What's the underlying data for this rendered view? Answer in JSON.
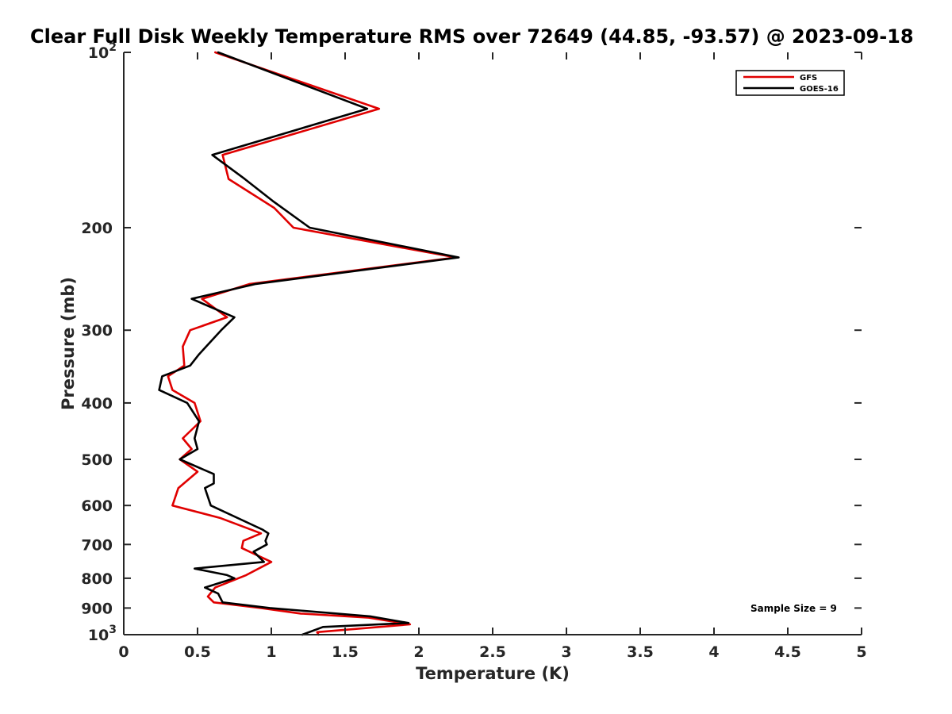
{
  "chart_data": {
    "type": "line",
    "title": "Clear Full Disk Weekly Temperature RMS over 72649 (44.85, -93.57) @ 2023-09-18",
    "xlabel": "Temperature (K)",
    "ylabel": "Pressure (mb)",
    "xlim": [
      0,
      5
    ],
    "ylim": [
      100,
      1000
    ],
    "y_scale": "log",
    "y_reversed": true,
    "x_ticks": [
      0,
      0.5,
      1,
      1.5,
      2,
      2.5,
      3,
      3.5,
      4,
      4.5,
      5
    ],
    "x_tick_labels": [
      "0",
      "0.5",
      "1",
      "1.5",
      "2",
      "2.5",
      "3",
      "3.5",
      "4",
      "4.5",
      "5"
    ],
    "y_ticks": [
      {
        "value": 100,
        "base": "10",
        "exp": "2"
      },
      {
        "value": 200,
        "label": "200"
      },
      {
        "value": 300,
        "label": "300"
      },
      {
        "value": 400,
        "label": "400"
      },
      {
        "value": 500,
        "label": "500"
      },
      {
        "value": 600,
        "label": "600"
      },
      {
        "value": 700,
        "label": "700"
      },
      {
        "value": 800,
        "label": "800"
      },
      {
        "value": 900,
        "label": "900"
      },
      {
        "value": 1000,
        "base": "10",
        "exp": "3"
      }
    ],
    "grid": false,
    "legend_position": "top-right",
    "series": [
      {
        "name": "GFS",
        "color": "#e00000",
        "points": [
          [
            0.62,
            100
          ],
          [
            1.73,
            125
          ],
          [
            0.67,
            150
          ],
          [
            0.71,
            165
          ],
          [
            1.02,
            185
          ],
          [
            1.15,
            200
          ],
          [
            2.25,
            225
          ],
          [
            0.85,
            250
          ],
          [
            0.53,
            265
          ],
          [
            0.7,
            285
          ],
          [
            0.45,
            300
          ],
          [
            0.4,
            320
          ],
          [
            0.41,
            345
          ],
          [
            0.3,
            360
          ],
          [
            0.33,
            380
          ],
          [
            0.48,
            400
          ],
          [
            0.52,
            430
          ],
          [
            0.4,
            460
          ],
          [
            0.46,
            480
          ],
          [
            0.38,
            500
          ],
          [
            0.5,
            525
          ],
          [
            0.37,
            560
          ],
          [
            0.33,
            600
          ],
          [
            0.65,
            630
          ],
          [
            0.93,
            670
          ],
          [
            0.81,
            690
          ],
          [
            0.8,
            710
          ],
          [
            1.0,
            750
          ],
          [
            0.83,
            790
          ],
          [
            0.62,
            830
          ],
          [
            0.57,
            860
          ],
          [
            0.61,
            880
          ],
          [
            0.93,
            900
          ],
          [
            1.2,
            920
          ],
          [
            1.66,
            935
          ],
          [
            1.94,
            960
          ],
          [
            1.31,
            990
          ],
          [
            1.32,
            1000
          ]
        ]
      },
      {
        "name": "GOES-16",
        "color": "#000000",
        "points": [
          [
            0.64,
            100
          ],
          [
            1.65,
            125
          ],
          [
            0.6,
            150
          ],
          [
            0.82,
            165
          ],
          [
            1.01,
            180
          ],
          [
            1.26,
            200
          ],
          [
            2.27,
            225
          ],
          [
            0.89,
            250
          ],
          [
            0.46,
            265
          ],
          [
            0.75,
            285
          ],
          [
            0.66,
            300
          ],
          [
            0.51,
            330
          ],
          [
            0.45,
            345
          ],
          [
            0.26,
            360
          ],
          [
            0.24,
            380
          ],
          [
            0.43,
            400
          ],
          [
            0.51,
            430
          ],
          [
            0.48,
            460
          ],
          [
            0.5,
            480
          ],
          [
            0.38,
            500
          ],
          [
            0.61,
            530
          ],
          [
            0.61,
            550
          ],
          [
            0.55,
            560
          ],
          [
            0.59,
            600
          ],
          [
            0.94,
            660
          ],
          [
            0.98,
            670
          ],
          [
            0.96,
            690
          ],
          [
            0.97,
            700
          ],
          [
            0.88,
            720
          ],
          [
            0.95,
            750
          ],
          [
            0.48,
            770
          ],
          [
            0.7,
            790
          ],
          [
            0.75,
            800
          ],
          [
            0.55,
            830
          ],
          [
            0.64,
            850
          ],
          [
            0.67,
            880
          ],
          [
            0.99,
            900
          ],
          [
            1.67,
            930
          ],
          [
            1.93,
            955
          ],
          [
            1.35,
            970
          ],
          [
            1.21,
            1000
          ]
        ]
      }
    ],
    "annotation": "Sample Size = 9"
  }
}
